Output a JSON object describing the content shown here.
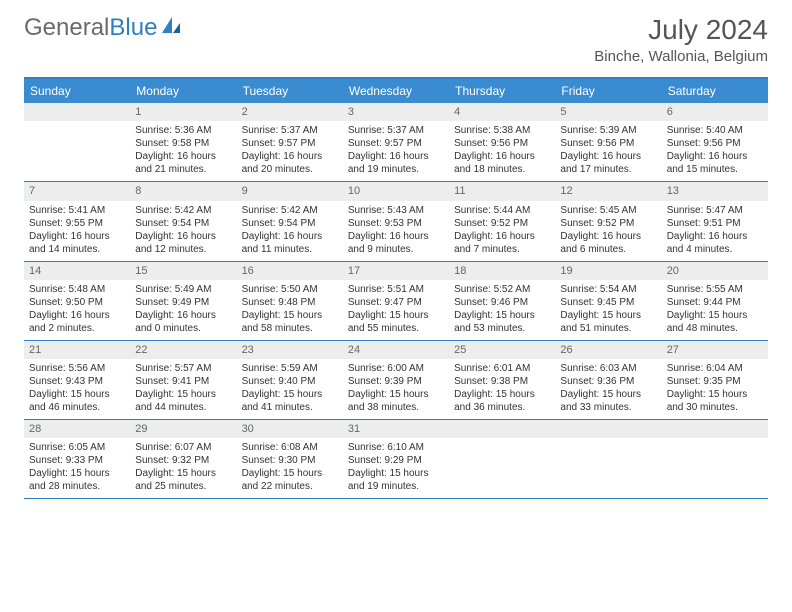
{
  "branding": {
    "logo_text_1": "General",
    "logo_text_2": "Blue",
    "logo_color_1": "#6b6b6b",
    "logo_color_2": "#2f7fc1"
  },
  "header": {
    "month_title": "July 2024",
    "location": "Binche, Wallonia, Belgium"
  },
  "colors": {
    "header_bar": "#3b8bd0",
    "rule": "#2f7fc1",
    "daynum_bg": "#eceded",
    "text": "#333333",
    "muted": "#666666",
    "background": "#ffffff"
  },
  "typography": {
    "month_title_size": 28,
    "location_size": 15,
    "day_header_size": 12,
    "cell_size": 10
  },
  "day_names": [
    "Sunday",
    "Monday",
    "Tuesday",
    "Wednesday",
    "Thursday",
    "Friday",
    "Saturday"
  ],
  "weeks": [
    [
      {
        "n": "",
        "sr": "",
        "ss": "",
        "dl": ""
      },
      {
        "n": "1",
        "sr": "Sunrise: 5:36 AM",
        "ss": "Sunset: 9:58 PM",
        "dl": "Daylight: 16 hours and 21 minutes."
      },
      {
        "n": "2",
        "sr": "Sunrise: 5:37 AM",
        "ss": "Sunset: 9:57 PM",
        "dl": "Daylight: 16 hours and 20 minutes."
      },
      {
        "n": "3",
        "sr": "Sunrise: 5:37 AM",
        "ss": "Sunset: 9:57 PM",
        "dl": "Daylight: 16 hours and 19 minutes."
      },
      {
        "n": "4",
        "sr": "Sunrise: 5:38 AM",
        "ss": "Sunset: 9:56 PM",
        "dl": "Daylight: 16 hours and 18 minutes."
      },
      {
        "n": "5",
        "sr": "Sunrise: 5:39 AM",
        "ss": "Sunset: 9:56 PM",
        "dl": "Daylight: 16 hours and 17 minutes."
      },
      {
        "n": "6",
        "sr": "Sunrise: 5:40 AM",
        "ss": "Sunset: 9:56 PM",
        "dl": "Daylight: 16 hours and 15 minutes."
      }
    ],
    [
      {
        "n": "7",
        "sr": "Sunrise: 5:41 AM",
        "ss": "Sunset: 9:55 PM",
        "dl": "Daylight: 16 hours and 14 minutes."
      },
      {
        "n": "8",
        "sr": "Sunrise: 5:42 AM",
        "ss": "Sunset: 9:54 PM",
        "dl": "Daylight: 16 hours and 12 minutes."
      },
      {
        "n": "9",
        "sr": "Sunrise: 5:42 AM",
        "ss": "Sunset: 9:54 PM",
        "dl": "Daylight: 16 hours and 11 minutes."
      },
      {
        "n": "10",
        "sr": "Sunrise: 5:43 AM",
        "ss": "Sunset: 9:53 PM",
        "dl": "Daylight: 16 hours and 9 minutes."
      },
      {
        "n": "11",
        "sr": "Sunrise: 5:44 AM",
        "ss": "Sunset: 9:52 PM",
        "dl": "Daylight: 16 hours and 7 minutes."
      },
      {
        "n": "12",
        "sr": "Sunrise: 5:45 AM",
        "ss": "Sunset: 9:52 PM",
        "dl": "Daylight: 16 hours and 6 minutes."
      },
      {
        "n": "13",
        "sr": "Sunrise: 5:47 AM",
        "ss": "Sunset: 9:51 PM",
        "dl": "Daylight: 16 hours and 4 minutes."
      }
    ],
    [
      {
        "n": "14",
        "sr": "Sunrise: 5:48 AM",
        "ss": "Sunset: 9:50 PM",
        "dl": "Daylight: 16 hours and 2 minutes."
      },
      {
        "n": "15",
        "sr": "Sunrise: 5:49 AM",
        "ss": "Sunset: 9:49 PM",
        "dl": "Daylight: 16 hours and 0 minutes."
      },
      {
        "n": "16",
        "sr": "Sunrise: 5:50 AM",
        "ss": "Sunset: 9:48 PM",
        "dl": "Daylight: 15 hours and 58 minutes."
      },
      {
        "n": "17",
        "sr": "Sunrise: 5:51 AM",
        "ss": "Sunset: 9:47 PM",
        "dl": "Daylight: 15 hours and 55 minutes."
      },
      {
        "n": "18",
        "sr": "Sunrise: 5:52 AM",
        "ss": "Sunset: 9:46 PM",
        "dl": "Daylight: 15 hours and 53 minutes."
      },
      {
        "n": "19",
        "sr": "Sunrise: 5:54 AM",
        "ss": "Sunset: 9:45 PM",
        "dl": "Daylight: 15 hours and 51 minutes."
      },
      {
        "n": "20",
        "sr": "Sunrise: 5:55 AM",
        "ss": "Sunset: 9:44 PM",
        "dl": "Daylight: 15 hours and 48 minutes."
      }
    ],
    [
      {
        "n": "21",
        "sr": "Sunrise: 5:56 AM",
        "ss": "Sunset: 9:43 PM",
        "dl": "Daylight: 15 hours and 46 minutes."
      },
      {
        "n": "22",
        "sr": "Sunrise: 5:57 AM",
        "ss": "Sunset: 9:41 PM",
        "dl": "Daylight: 15 hours and 44 minutes."
      },
      {
        "n": "23",
        "sr": "Sunrise: 5:59 AM",
        "ss": "Sunset: 9:40 PM",
        "dl": "Daylight: 15 hours and 41 minutes."
      },
      {
        "n": "24",
        "sr": "Sunrise: 6:00 AM",
        "ss": "Sunset: 9:39 PM",
        "dl": "Daylight: 15 hours and 38 minutes."
      },
      {
        "n": "25",
        "sr": "Sunrise: 6:01 AM",
        "ss": "Sunset: 9:38 PM",
        "dl": "Daylight: 15 hours and 36 minutes."
      },
      {
        "n": "26",
        "sr": "Sunrise: 6:03 AM",
        "ss": "Sunset: 9:36 PM",
        "dl": "Daylight: 15 hours and 33 minutes."
      },
      {
        "n": "27",
        "sr": "Sunrise: 6:04 AM",
        "ss": "Sunset: 9:35 PM",
        "dl": "Daylight: 15 hours and 30 minutes."
      }
    ],
    [
      {
        "n": "28",
        "sr": "Sunrise: 6:05 AM",
        "ss": "Sunset: 9:33 PM",
        "dl": "Daylight: 15 hours and 28 minutes."
      },
      {
        "n": "29",
        "sr": "Sunrise: 6:07 AM",
        "ss": "Sunset: 9:32 PM",
        "dl": "Daylight: 15 hours and 25 minutes."
      },
      {
        "n": "30",
        "sr": "Sunrise: 6:08 AM",
        "ss": "Sunset: 9:30 PM",
        "dl": "Daylight: 15 hours and 22 minutes."
      },
      {
        "n": "31",
        "sr": "Sunrise: 6:10 AM",
        "ss": "Sunset: 9:29 PM",
        "dl": "Daylight: 15 hours and 19 minutes."
      },
      {
        "n": "",
        "sr": "",
        "ss": "",
        "dl": ""
      },
      {
        "n": "",
        "sr": "",
        "ss": "",
        "dl": ""
      },
      {
        "n": "",
        "sr": "",
        "ss": "",
        "dl": ""
      }
    ]
  ]
}
